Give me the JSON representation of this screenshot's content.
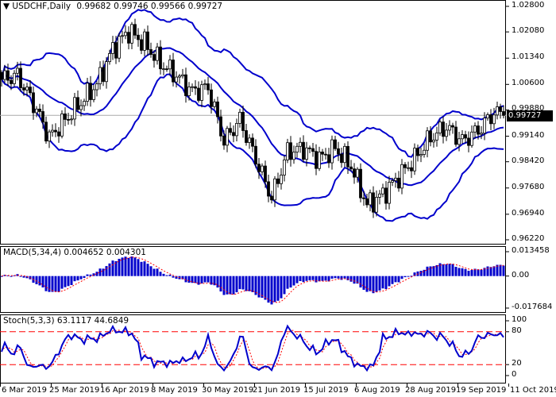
{
  "header": {
    "symbol_timeframe": "USDCHF,Daily",
    "open": "0.99682",
    "high": "0.99746",
    "low": "0.99566",
    "close": "0.99727"
  },
  "chart_data": [
    {
      "type": "candlestick",
      "title": "USDCHF,Daily",
      "overlay": "Bollinger Bands",
      "approx_close_path": [
        1.0074,
        1.0085,
        1.0007,
        0.991,
        0.996,
        1.001,
        1.006,
        1.016,
        1.021,
        1.0175,
        1.012,
        1.0085,
        1.004,
        1.005,
        0.99,
        0.996,
        0.985,
        0.974,
        0.987,
        0.988,
        0.985,
        0.988,
        0.983,
        0.972,
        0.975,
        0.98,
        0.985,
        0.991,
        0.994,
        0.99,
        0.993,
        0.998,
        0.99727
      ],
      "last_price": "0.99727",
      "y_ticks": [
        "1.02800",
        "1.02080",
        "1.01340",
        "1.00600",
        "0.99880",
        "0.99140",
        "0.98420",
        "0.97680",
        "0.96940",
        "0.96220"
      ],
      "ylim": [
        0.9622,
        1.028
      ],
      "x_ticks": [
        "6 Mar 2019",
        "25 Mar 2019",
        "16 Apr 2019",
        "8 May 2019",
        "30 May 2019",
        "21 Jun 2019",
        "15 Jul 2019",
        "6 Aug 2019",
        "28 Aug 2019",
        "19 Sep 2019",
        "11 Oct 2019"
      ],
      "colors": {
        "bands": "#0000cc",
        "candle": "#000000",
        "last_price_bg": "#000000"
      }
    },
    {
      "type": "bar",
      "title": "MACD(5,34,4) 0.004652 0.004301",
      "y_ticks": [
        "0.013458",
        "0.00",
        "-0.017684"
      ],
      "ylim": [
        -0.017684,
        0.013458
      ],
      "colors": {
        "histogram": "#0000cc",
        "signal": "#ff0000"
      }
    },
    {
      "type": "line",
      "title": "Stoch(5,3,3) 63.1117 44.6849",
      "y_ticks": [
        "100",
        "80",
        "20",
        "0"
      ],
      "ylim": [
        0,
        100
      ],
      "levels": [
        80,
        20
      ],
      "colors": {
        "main": "#0000cc",
        "signal": "#ff0000",
        "levels": "#ff0000"
      }
    }
  ]
}
